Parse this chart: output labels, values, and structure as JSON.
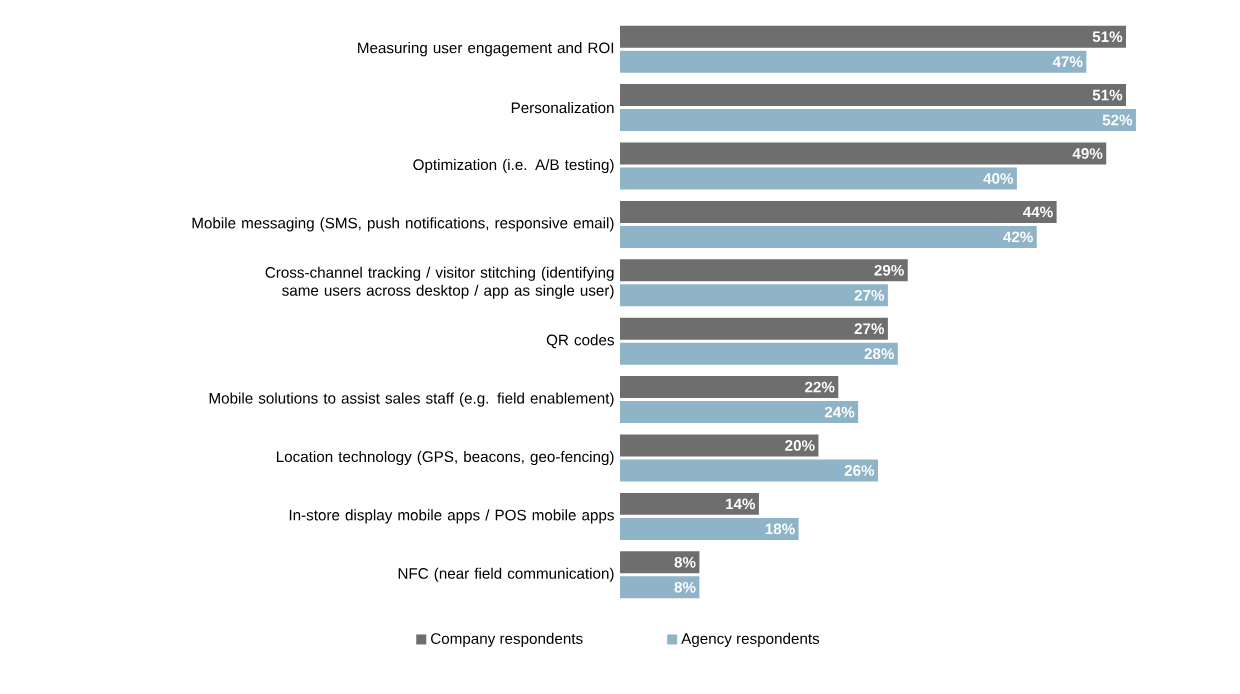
{
  "chart_data": {
    "type": "bar",
    "orientation": "horizontal",
    "legend": "bottom",
    "categories": [
      "Measuring user engagement and ROI",
      "Personalization",
      "Optimization (i.e. A/B testing)",
      "Mobile messaging (SMS, push notifications, responsive email)",
      "Cross-channel tracking / visitor stitching (identifying same users across desktop / app as single user)",
      "QR codes",
      "Mobile solutions to assist sales staff (e.g. field enablement)",
      "Location technology (GPS, beacons, geo-fencing)",
      "In-store display mobile apps / POS mobile apps",
      "NFC (near field communication)"
    ],
    "series": [
      {
        "name": "Company respondents",
        "color": "#6e6e6e",
        "values": [
          51,
          51,
          49,
          44,
          29,
          27,
          22,
          20,
          14,
          8
        ],
        "value_labels": [
          "51%",
          "51%",
          "49%",
          "44%",
          "29%",
          "27%",
          "22%",
          "20%",
          "14%",
          "8%"
        ]
      },
      {
        "name": "Agency respondents",
        "color": "#8fb4c8",
        "values": [
          47,
          52,
          40,
          42,
          27,
          28,
          24,
          26,
          18,
          8
        ],
        "value_labels": [
          "47%",
          "52%",
          "40%",
          "42%",
          "27%",
          "28%",
          "24%",
          "26%",
          "18%",
          "8%"
        ]
      }
    ]
  }
}
